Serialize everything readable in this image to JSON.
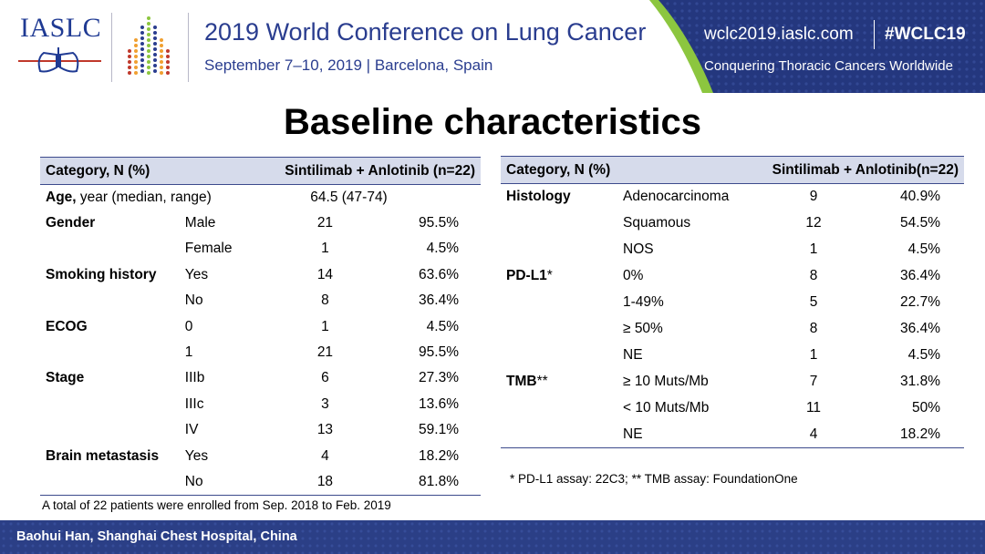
{
  "header": {
    "logo_text": "IASLC",
    "conference_title": "2019 World Conference on Lung Cancer",
    "conference_date": "September 7–10, 2019 | Barcelona, Spain",
    "website": "wclc2019.iaslc.com",
    "hashtag": "#WCLC19",
    "tagline": "Conquering Thoracic Cancers Worldwide"
  },
  "title": "Baseline characteristics",
  "table_left": {
    "header_category": "Category, N (%)",
    "header_group": "Sintilimab + Anlotinib (n=22)",
    "age_label": "Age,",
    "age_sub": " year (median, range)",
    "age_value": "64.5 (47-74)",
    "rows": [
      {
        "category": "Gender",
        "sub": "Male",
        "n": "21",
        "pct": "95.5%"
      },
      {
        "category": "",
        "sub": "Female",
        "n": "1",
        "pct": "4.5%"
      },
      {
        "category": "Smoking history",
        "sub": "Yes",
        "n": "14",
        "pct": "63.6%"
      },
      {
        "category": "",
        "sub": "No",
        "n": "8",
        "pct": "36.4%"
      },
      {
        "category": "ECOG",
        "sub": "0",
        "n": "1",
        "pct": "4.5%"
      },
      {
        "category": "",
        "sub": "1",
        "n": "21",
        "pct": "95.5%"
      },
      {
        "category": "Stage",
        "sub": "IIIb",
        "n": "6",
        "pct": "27.3%"
      },
      {
        "category": "",
        "sub": "IIIc",
        "n": "3",
        "pct": "13.6%"
      },
      {
        "category": "",
        "sub": "IV",
        "n": "13",
        "pct": "59.1%"
      },
      {
        "category": "Brain metastasis",
        "sub": "Yes",
        "n": "4",
        "pct": "18.2%"
      },
      {
        "category": "",
        "sub": "No",
        "n": "18",
        "pct": "81.8%"
      }
    ]
  },
  "table_right": {
    "header_category": "Category, N (%)",
    "header_group": "Sintilimab + Anlotinib(n=22)",
    "rows": [
      {
        "category": "Histology",
        "sup": "",
        "sub": "Adenocarcinoma",
        "n": "9",
        "pct": "40.9%"
      },
      {
        "category": "",
        "sup": "",
        "sub": "Squamous",
        "n": "12",
        "pct": "54.5%"
      },
      {
        "category": "",
        "sup": "",
        "sub": "NOS",
        "n": "1",
        "pct": "4.5%"
      },
      {
        "category": "PD-L1",
        "sup": "*",
        "sub": "0%",
        "n": "8",
        "pct": "36.4%"
      },
      {
        "category": "",
        "sup": "",
        "sub": "1-49%",
        "n": "5",
        "pct": "22.7%"
      },
      {
        "category": "",
        "sup": "",
        "sub": "≥ 50%",
        "n": "8",
        "pct": "36.4%"
      },
      {
        "category": "",
        "sup": "",
        "sub": "NE",
        "n": "1",
        "pct": "4.5%"
      },
      {
        "category": "TMB",
        "sup": "**",
        "sub": "≥ 10 Muts/Mb",
        "n": "7",
        "pct": "31.8%"
      },
      {
        "category": "",
        "sup": "",
        "sub": "< 10 Muts/Mb",
        "n": "11",
        "pct": "50%"
      },
      {
        "category": "",
        "sup": "",
        "sub": "NE",
        "n": "4",
        "pct": "18.2%"
      }
    ]
  },
  "footnote_left": "A total of 22 patients were enrolled from Sep. 2018 to Feb. 2019",
  "footnote_right": "* PD-L1 assay: 22C3; ** TMB assay: FoundationOne",
  "footer": "Baohui Han, Shanghai Chest Hospital, China",
  "colors": {
    "navy": "#2b3f86",
    "header_fill": "#d6dbeb",
    "accent_green": "#8cc63f"
  }
}
